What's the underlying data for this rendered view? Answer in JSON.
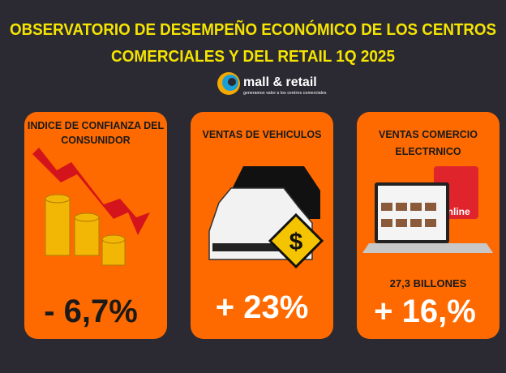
{
  "header": {
    "title_lines": [
      "OBSERVATORIO DE DESEMPEÑO  ECONÓMICO DE LOS CENTROS",
      "COMERCIALES Y DEL RETAIL 1Q 2025"
    ]
  },
  "logo": {
    "name": "mall & retail",
    "tagline": "generamos valor a los centros comerciales"
  },
  "cards": [
    {
      "title_lines": [
        "INDICE DE CONFIANZA DEL",
        "CONSUNIDOR"
      ],
      "value": "- 6,7%"
    },
    {
      "title_lines": [
        "VENTAS DE VEHICULOS"
      ],
      "icon_text": "$",
      "value": "+ 23%"
    },
    {
      "title_lines": [
        "VENTAS COMERCIO",
        "ELECTRNICO"
      ],
      "icon_text": "online",
      "note": "27,3 BILLONES",
      "value": "+ 16,%"
    }
  ]
}
